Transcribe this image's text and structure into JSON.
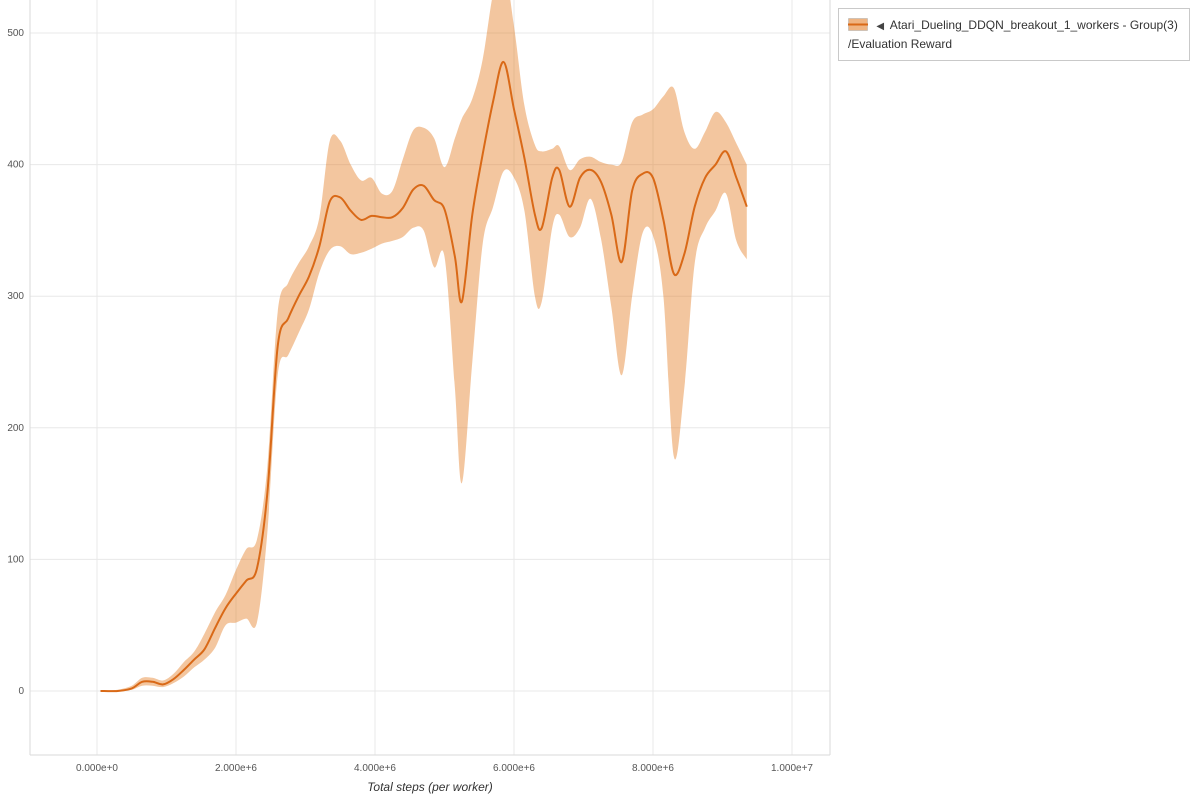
{
  "page": {
    "background": "#ffffff"
  },
  "legend": {
    "collapse_icon": "◀",
    "series_name_line1": "Atari_Dueling_DDQN_breakout_1_workers - Group(3)",
    "series_name_line2": "/Evaluation Reward"
  },
  "chart_data": {
    "type": "line",
    "title": "",
    "xlabel": "Total steps (per worker)",
    "ylabel": "",
    "grid": true,
    "legend_position": "top-right",
    "xlim": [
      0,
      10000000
    ],
    "ylim": [
      0,
      500
    ],
    "x_ticks": {
      "values": [
        0,
        2000000,
        4000000,
        6000000,
        8000000,
        10000000
      ],
      "labels": [
        "0.000e+0",
        "2.000e+6",
        "4.000e+6",
        "6.000e+6",
        "8.000e+6",
        "1.000e+7"
      ]
    },
    "y_ticks": {
      "values": [
        0,
        100,
        200,
        300,
        400,
        500
      ],
      "labels": [
        "0",
        "100",
        "200",
        "300",
        "400",
        "500"
      ]
    },
    "colors": {
      "line": "#d96917",
      "band": "#e2761b",
      "band_opacity": 0.42,
      "grid": "#e8e8e8",
      "frame": "#dadada",
      "tick_text": "#555555",
      "axis_title": "#333333"
    },
    "series": [
      {
        "name": "Atari_Dueling_DDQN_breakout_1_workers - Group(3)/Evaluation Reward",
        "metric": "Evaluation Reward",
        "x": [
          50000,
          300000,
          500000,
          650000,
          800000,
          950000,
          1100000,
          1250000,
          1400000,
          1550000,
          1700000,
          1850000,
          2000000,
          2150000,
          2300000,
          2450000,
          2600000,
          2750000,
          2900000,
          3050000,
          3200000,
          3350000,
          3500000,
          3650000,
          3800000,
          3950000,
          4100000,
          4250000,
          4400000,
          4550000,
          4700000,
          4850000,
          5000000,
          5150000,
          5250000,
          5400000,
          5550000,
          5700000,
          5850000,
          6000000,
          6150000,
          6300000,
          6400000,
          6550000,
          6650000,
          6800000,
          6950000,
          7100000,
          7250000,
          7400000,
          7550000,
          7700000,
          7850000,
          8000000,
          8150000,
          8300000,
          8450000,
          8600000,
          8750000,
          8900000,
          9050000,
          9200000,
          9350000
        ],
        "mean": [
          0,
          0,
          2,
          7,
          7,
          5,
          9,
          16,
          24,
          32,
          48,
          63,
          74,
          84,
          93,
          150,
          262,
          283,
          300,
          315,
          338,
          372,
          375,
          365,
          358,
          361,
          360,
          360,
          367,
          381,
          384,
          373,
          366,
          330,
          296,
          362,
          408,
          448,
          478,
          442,
          405,
          362,
          352,
          390,
          396,
          368,
          390,
          396,
          387,
          362,
          326,
          380,
          393,
          390,
          358,
          317,
          332,
          368,
          390,
          400,
          410,
          390,
          368
        ],
        "lower": [
          0,
          0,
          1,
          4,
          4,
          3,
          6,
          11,
          18,
          24,
          33,
          50,
          52,
          55,
          52,
          120,
          240,
          255,
          272,
          290,
          318,
          335,
          338,
          332,
          333,
          336,
          340,
          342,
          345,
          352,
          350,
          322,
          330,
          230,
          158,
          250,
          340,
          368,
          395,
          390,
          365,
          300,
          296,
          352,
          362,
          345,
          352,
          374,
          344,
          292,
          240,
          300,
          348,
          346,
          300,
          178,
          230,
          325,
          352,
          365,
          378,
          342,
          328
        ],
        "upper": [
          0,
          1,
          4,
          10,
          10,
          8,
          13,
          22,
          30,
          44,
          60,
          73,
          92,
          108,
          115,
          170,
          288,
          310,
          325,
          338,
          360,
          418,
          418,
          400,
          388,
          390,
          378,
          380,
          404,
          426,
          428,
          420,
          398,
          420,
          435,
          450,
          480,
          530,
          552,
          505,
          445,
          415,
          410,
          412,
          414,
          396,
          404,
          406,
          402,
          400,
          402,
          432,
          438,
          442,
          452,
          458,
          425,
          412,
          425,
          440,
          432,
          416,
          400
        ]
      }
    ]
  }
}
